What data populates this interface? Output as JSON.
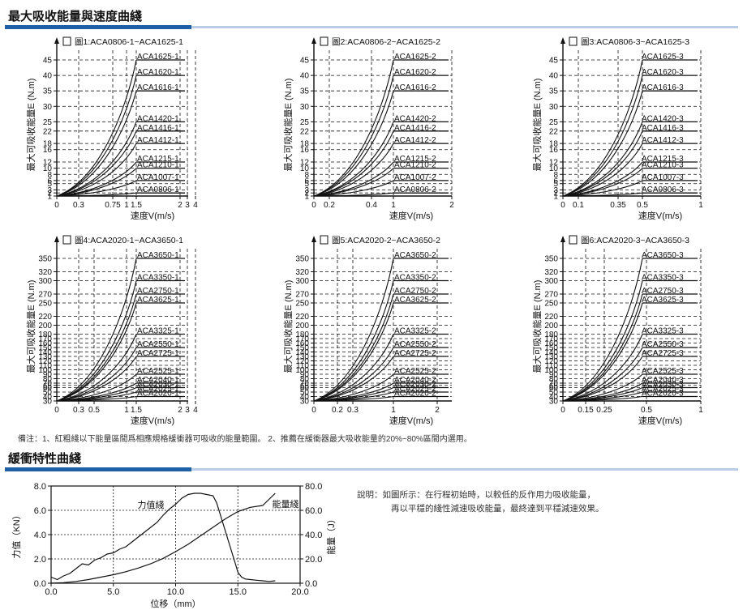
{
  "sections": {
    "curves_title": "最大吸收能量與速度曲綫",
    "trait_title": "緩衝特性曲綫"
  },
  "note": "備注：1、紅粗綫以下能量區間爲相應規格緩衝器可吸收的能量範圍。 2、推薦在緩衝器最大吸收能量的20%~80%區間内選用。",
  "description": {
    "line1": "說明：如圖所示：在行程初始時，以較低的反作用力吸收能量，",
    "line2": "再以平穩的綫性減速吸收能量，最終達到平穩減速效果。"
  },
  "colors": {
    "accent": "#1f5fa5",
    "accent_light": "#b9cde6",
    "ink": "#111111"
  },
  "chart_data": [
    {
      "type": "line",
      "title": "圖1:ACA0806-1~ACA1625-1",
      "xlabel": "速度V(m/s)",
      "ylabel": "最大可吸收能量E (N.m)",
      "x_ticks": [
        "0",
        "0.3",
        "0.75",
        "1",
        "1.5",
        "2",
        "3",
        "4"
      ],
      "y_ticks": [
        "1",
        "2",
        "3",
        "5",
        "6",
        "8",
        "10",
        "12",
        "16",
        "18",
        "22",
        "25",
        "30",
        "35",
        "40",
        "45"
      ],
      "series": [
        {
          "name": "ACA1625-1",
          "y_max": 45
        },
        {
          "name": "ACA1620-1",
          "y_max": 40
        },
        {
          "name": "ACA1616-1",
          "y_max": 35
        },
        {
          "name": "ACA1420-1",
          "y_max": 25
        },
        {
          "name": "ACA1416-1",
          "y_max": 22
        },
        {
          "name": "ACA1412-1",
          "y_max": 18
        },
        {
          "name": "ACA1215-1",
          "y_max": 12
        },
        {
          "name": "ACA1210-1",
          "y_max": 10
        },
        {
          "name": "ACA1007-1",
          "y_max": 6
        },
        {
          "name": "ACA0806-1",
          "y_max": 2
        }
      ]
    },
    {
      "type": "line",
      "title": "圖2:ACA0806-2~ACA1625-2",
      "xlabel": "速度V(m/s)",
      "ylabel": "最大可吸收能量E (N.m)",
      "x_ticks": [
        "0",
        "0.2",
        "0.4",
        "1",
        "2"
      ],
      "y_ticks": [
        "1",
        "2",
        "3",
        "5",
        "6",
        "8",
        "10",
        "12",
        "16",
        "18",
        "22",
        "25",
        "30",
        "35",
        "40",
        "45"
      ],
      "series": [
        {
          "name": "ACA1625-2",
          "y_max": 45
        },
        {
          "name": "ACA1620-2",
          "y_max": 40
        },
        {
          "name": "ACA1616-2",
          "y_max": 35
        },
        {
          "name": "ACA1420-2",
          "y_max": 25
        },
        {
          "name": "ACA1416-2",
          "y_max": 22
        },
        {
          "name": "ACA1412-2",
          "y_max": 18
        },
        {
          "name": "ACA1215-2",
          "y_max": 12
        },
        {
          "name": "ACA1210-2",
          "y_max": 10
        },
        {
          "name": "ACA1007-2",
          "y_max": 6
        },
        {
          "name": "ACA0806-2",
          "y_max": 2
        }
      ]
    },
    {
      "type": "line",
      "title": "圖3:ACA0806-3~ACA1625-3",
      "xlabel": "速度V(m/s)",
      "ylabel": "最大可吸收能量E (N.m)",
      "x_ticks": [
        "0",
        "0.1",
        "0.35",
        "0.5",
        "1"
      ],
      "y_ticks": [
        "1",
        "2",
        "3",
        "5",
        "6",
        "8",
        "10",
        "12",
        "16",
        "18",
        "22",
        "25",
        "30",
        "35",
        "40",
        "45"
      ],
      "series": [
        {
          "name": "ACA1625-3",
          "y_max": 45
        },
        {
          "name": "ACA1620-3",
          "y_max": 40
        },
        {
          "name": "ACA1616-3",
          "y_max": 35
        },
        {
          "name": "ACA1420-3",
          "y_max": 25
        },
        {
          "name": "ACA1416-3",
          "y_max": 22
        },
        {
          "name": "ACA1412-3",
          "y_max": 18
        },
        {
          "name": "ACA1215-3",
          "y_max": 12
        },
        {
          "name": "ACA1210-3",
          "y_max": 10
        },
        {
          "name": "ACA1007-3",
          "y_max": 6
        },
        {
          "name": "ACA0806-3",
          "y_max": 2
        }
      ]
    },
    {
      "type": "line",
      "title": "圖4:ACA2020-1~ACA3650-1",
      "xlabel": "速度V(m/s)",
      "ylabel": "最大可吸收能量E (N.m)",
      "x_ticks": [
        "0",
        "0.3",
        "0.5",
        "1",
        "1.5",
        "2",
        "3",
        "4"
      ],
      "y_ticks": [
        "30",
        "40",
        "50",
        "60",
        "65",
        "70",
        "80",
        "90",
        "100",
        "110",
        "120",
        "130",
        "140",
        "150",
        "160",
        "170",
        "180",
        "200",
        "220",
        "250",
        "270",
        "300",
        "320",
        "350"
      ],
      "series": [
        {
          "name": "ACA3650-1",
          "y_max": 350
        },
        {
          "name": "ACA3350-1",
          "y_max": 300
        },
        {
          "name": "ACA2750-1",
          "y_max": 270
        },
        {
          "name": "ACA3625-1",
          "y_max": 250
        },
        {
          "name": "ACA3325-1",
          "y_max": 180
        },
        {
          "name": "ACA2550-1",
          "y_max": 150
        },
        {
          "name": "ACA2725-1",
          "y_max": 130
        },
        {
          "name": "ACA2525-1",
          "y_max": 90
        },
        {
          "name": "ACA2040-1",
          "y_max": 70
        },
        {
          "name": "ACA2030-1",
          "y_max": 60
        },
        {
          "name": "ACA2025-1",
          "y_max": 50
        },
        {
          "name": "ACA2020-1",
          "y_max": 40
        }
      ]
    },
    {
      "type": "line",
      "title": "圖5:ACA2020-2~ACA3650-2",
      "xlabel": "速度V(m/s)",
      "ylabel": "最大可吸收能量E (N.m)",
      "x_ticks": [
        "0",
        "0.2",
        "0.3",
        "1",
        "2"
      ],
      "y_ticks": [
        "30",
        "40",
        "50",
        "60",
        "65",
        "70",
        "80",
        "90",
        "100",
        "110",
        "120",
        "130",
        "140",
        "150",
        "160",
        "170",
        "180",
        "200",
        "220",
        "250",
        "270",
        "300",
        "320",
        "350"
      ],
      "series": [
        {
          "name": "ACA3650-2",
          "y_max": 350
        },
        {
          "name": "ACA3350-2",
          "y_max": 300
        },
        {
          "name": "ACA2750-2",
          "y_max": 270
        },
        {
          "name": "ACA3625-2",
          "y_max": 250
        },
        {
          "name": "ACA3325-2",
          "y_max": 180
        },
        {
          "name": "ACA2550-2",
          "y_max": 150
        },
        {
          "name": "ACA2725-2",
          "y_max": 130
        },
        {
          "name": "ACA2525-2",
          "y_max": 90
        },
        {
          "name": "ACA2040-2",
          "y_max": 70
        },
        {
          "name": "ACA2030-2",
          "y_max": 60
        },
        {
          "name": "ACA2025-2",
          "y_max": 50
        },
        {
          "name": "ACA2020-2",
          "y_max": 40
        }
      ]
    },
    {
      "type": "line",
      "title": "圖6:ACA2020-3~ACA3650-3",
      "xlabel": "速度V(m/s)",
      "ylabel": "最大可吸收能量E (N.m)",
      "x_ticks": [
        "0",
        "0.15",
        "0.25",
        "0.5",
        "1"
      ],
      "y_ticks": [
        "30",
        "40",
        "50",
        "60",
        "65",
        "70",
        "80",
        "90",
        "100",
        "110",
        "120",
        "130",
        "140",
        "150",
        "160",
        "170",
        "180",
        "200",
        "220",
        "250",
        "270",
        "300",
        "320",
        "350"
      ],
      "series": [
        {
          "name": "ACA3650-3",
          "y_max": 350
        },
        {
          "name": "ACA3350-3",
          "y_max": 300
        },
        {
          "name": "ACA2750-3",
          "y_max": 270
        },
        {
          "name": "ACA3625-3",
          "y_max": 250
        },
        {
          "name": "ACA3325-3",
          "y_max": 180
        },
        {
          "name": "ACA2550-3",
          "y_max": 150
        },
        {
          "name": "ACA2725-3",
          "y_max": 130
        },
        {
          "name": "ACA2525-3",
          "y_max": 90
        },
        {
          "name": "ACA2040-3",
          "y_max": 70
        },
        {
          "name": "ACA2030-3",
          "y_max": 60
        },
        {
          "name": "ACA2025-3",
          "y_max": 50
        },
        {
          "name": "ACA2020-3",
          "y_max": 40
        }
      ]
    },
    {
      "type": "line",
      "xlabel": "位移（mm）",
      "ylabel": "力值（KN）",
      "y2label": "能量（J）",
      "x_ticks": [
        "0.0",
        "5.0",
        "10.0",
        "15.0",
        "20.0"
      ],
      "y_ticks": [
        "0.0",
        "2.0",
        "4.0",
        "6.0",
        "8.0"
      ],
      "y2_ticks": [
        "0.0",
        "20.0",
        "40.0",
        "60.0",
        "80.0"
      ],
      "xlim": [
        0,
        20
      ],
      "ylim": [
        0,
        8
      ],
      "y2lim": [
        0,
        80
      ],
      "grid": true,
      "series": [
        {
          "name": "力值綫",
          "axis": "left",
          "x": [
            0,
            0.5,
            1,
            1.5,
            2,
            2.5,
            3,
            3.5,
            4,
            4.5,
            5,
            5.5,
            6,
            6.5,
            7,
            7.5,
            8,
            8.5,
            9,
            9.5,
            10,
            10.5,
            11,
            11.5,
            12,
            12.5,
            13,
            13.3,
            13.6,
            13.9,
            14.2,
            14.5,
            14.8,
            15,
            15.3,
            15.6,
            16,
            16.5,
            17,
            17.5,
            18
          ],
          "y": [
            0.5,
            0.3,
            0.6,
            0.8,
            1.2,
            1.6,
            1.5,
            1.9,
            2.1,
            2.4,
            2.5,
            2.8,
            3.0,
            3.4,
            3.8,
            4.2,
            4.6,
            5.0,
            5.6,
            6.1,
            6.5,
            7.0,
            7.3,
            7.4,
            7.4,
            7.3,
            7.2,
            6.6,
            5.6,
            4.6,
            3.6,
            2.6,
            1.6,
            0.9,
            0.5,
            0.35,
            0.3,
            0.25,
            0.2,
            0.15,
            0.2
          ]
        },
        {
          "name": "能量綫",
          "axis": "right",
          "x": [
            0,
            1,
            2,
            3,
            4,
            5,
            6,
            7,
            8,
            9,
            10,
            11,
            12,
            13,
            14,
            15,
            16,
            17,
            17.5,
            18
          ],
          "y": [
            0,
            0.5,
            1.5,
            3,
            5,
            7,
            9.5,
            12.5,
            16,
            20.5,
            26,
            32,
            39,
            46,
            53,
            59,
            62.5,
            64,
            69,
            74
          ]
        }
      ]
    }
  ]
}
